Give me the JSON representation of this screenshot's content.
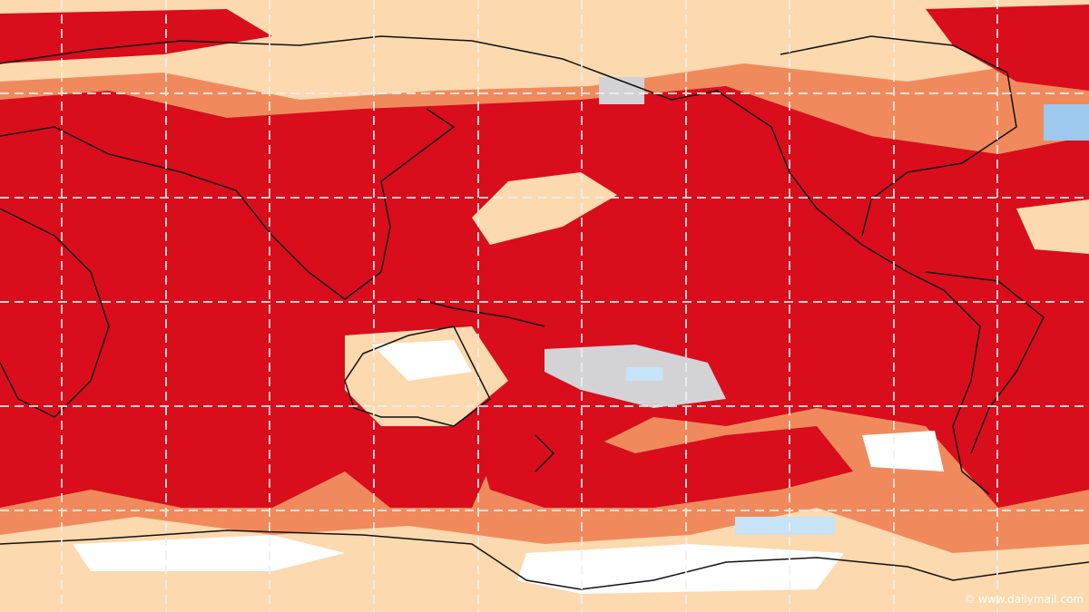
{
  "watermark": "© www.dailymail.com"
}
